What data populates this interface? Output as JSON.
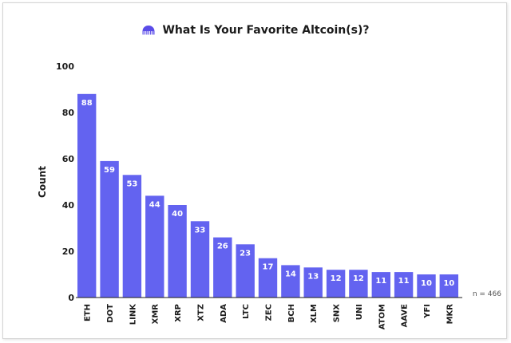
{
  "title_logo_icon": "kraken-logo-icon",
  "chart_data": {
    "type": "bar",
    "title": "What Is Your Favorite Altcoin(s)?",
    "xlabel": "",
    "ylabel": "Count",
    "categories": [
      "ETH",
      "DOT",
      "LINK",
      "XMR",
      "XRP",
      "XTZ",
      "ADA",
      "LTC",
      "ZEC",
      "BCH",
      "XLM",
      "SNX",
      "UNI",
      "ATOM",
      "AAVE",
      "YFI",
      "MKR"
    ],
    "values": [
      88,
      59,
      53,
      44,
      40,
      33,
      26,
      23,
      17,
      14,
      13,
      12,
      12,
      11,
      11,
      10,
      10
    ],
    "ylim": [
      0,
      100
    ],
    "yticks": [
      0,
      20,
      40,
      60,
      80,
      100
    ],
    "grid": false,
    "bar_color": "#6363f0",
    "data_labels": true,
    "annotation": "n = 466"
  }
}
